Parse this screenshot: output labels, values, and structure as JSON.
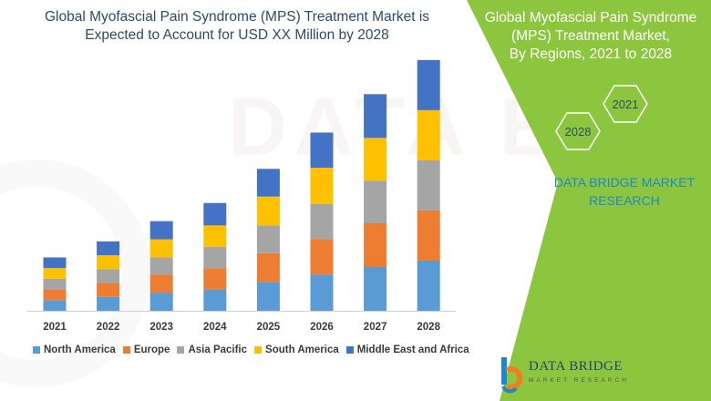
{
  "chart_title": {
    "line1": "Global Myofascial Pain Syndrome (MPS) Treatment Market is",
    "line2": "Expected to Account for USD XX Million by 2028"
  },
  "right_panel": {
    "title_line1": "Global Myofascial Pain Syndrome",
    "title_line2": "(MPS) Treatment Market,",
    "title_line3": "By Regions, 2021 to 2028",
    "hex_top": "2021",
    "hex_bottom": "2028",
    "brand_line1": "DATA BRIDGE MARKET",
    "brand_line2": "RESEARCH",
    "panel_color": "#8cc63e"
  },
  "logo": {
    "name": "DATA BRIDGE",
    "tagline": "MARKET RESEARCH"
  },
  "chart_data": {
    "type": "bar",
    "stacked": true,
    "categories": [
      "2021",
      "2022",
      "2023",
      "2024",
      "2025",
      "2026",
      "2027",
      "2028"
    ],
    "series": [
      {
        "name": "North America",
        "color": "#5b9bd5",
        "values": [
          1.0,
          1.3,
          1.7,
          2.0,
          2.7,
          3.4,
          4.1,
          4.7
        ]
      },
      {
        "name": "Europe",
        "color": "#ed7d31",
        "values": [
          1.0,
          1.3,
          1.7,
          2.0,
          2.7,
          3.3,
          4.1,
          4.7
        ]
      },
      {
        "name": "Asia Pacific",
        "color": "#a5a5a5",
        "values": [
          1.0,
          1.3,
          1.6,
          2.0,
          2.6,
          3.3,
          4.0,
          4.7
        ]
      },
      {
        "name": "South America",
        "color": "#ffc000",
        "values": [
          1.0,
          1.3,
          1.7,
          2.0,
          2.7,
          3.4,
          4.0,
          4.7
        ]
      },
      {
        "name": "Middle East and Africa",
        "color": "#4472c4",
        "values": [
          1.0,
          1.3,
          1.7,
          2.1,
          2.6,
          3.3,
          4.1,
          4.7
        ]
      }
    ],
    "grid": false,
    "legend_position": "bottom",
    "ylim": [
      0,
      24
    ]
  }
}
